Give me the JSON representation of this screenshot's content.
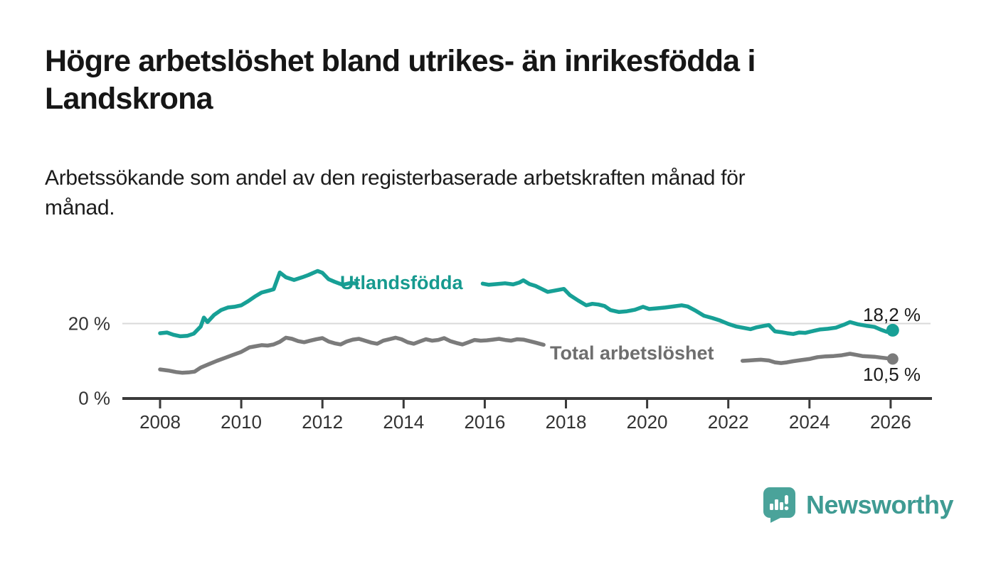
{
  "page": {
    "background": "#ffffff"
  },
  "header": {
    "title_lines": [
      "Högre arbetslöshet bland utrikes- än inrikesfödda i",
      "Landskrona"
    ],
    "subtitle_lines": [
      "Arbetssökande som andel av den registerbaserade arbetskraften månad för",
      "månad."
    ]
  },
  "footer": {
    "brand_name": "Newsworthy",
    "brand_icon": "speech-bubble-bar-chart"
  },
  "colors": {
    "teal_line": "#17a096",
    "teal_label": "#169a8f",
    "gray_line": "#7b7b7b",
    "gray_label": "#6e6e6e",
    "axis": "#3a3a3a",
    "gridline": "#dadada",
    "tick_text": "#333333",
    "value_text": "#1a1a1a",
    "logo": "#4aa39a"
  },
  "chart_data": {
    "type": "line",
    "unit": "%",
    "x_axis": {
      "tick_years": [
        2008,
        2010,
        2012,
        2014,
        2016,
        2018,
        2020,
        2022,
        2024,
        2026
      ],
      "tick_labels": [
        "2008",
        "2010",
        "2012",
        "2014",
        "2016",
        "2018",
        "2020",
        "2022",
        "2024",
        "2026"
      ],
      "range_years": [
        2007.1,
        2027.0
      ]
    },
    "y_axis": {
      "ticks": [
        {
          "value": 0,
          "label": "0 %"
        },
        {
          "value": 20,
          "label": "20 %"
        }
      ],
      "gridline_values": [
        20
      ],
      "range": [
        0,
        40
      ]
    },
    "legend_position": "inline-labels-on-lines",
    "grid": "horizontal-only",
    "series": [
      {
        "name": "Utlandsfödda",
        "color": "#17a096",
        "label_color": "#169a8f",
        "end_value_label": "18,2 %",
        "end_point": [
          2026.05,
          18.2
        ],
        "segments": [
          [
            [
              2008.0,
              17.4
            ],
            [
              2008.17,
              17.6
            ],
            [
              2008.33,
              17.0
            ],
            [
              2008.5,
              16.6
            ],
            [
              2008.67,
              16.7
            ],
            [
              2008.83,
              17.3
            ],
            [
              2009.0,
              19.2
            ],
            [
              2009.08,
              21.6
            ],
            [
              2009.17,
              20.4
            ],
            [
              2009.33,
              22.3
            ],
            [
              2009.5,
              23.6
            ],
            [
              2009.67,
              24.3
            ],
            [
              2009.83,
              24.5
            ],
            [
              2010.0,
              24.9
            ],
            [
              2010.17,
              26.0
            ],
            [
              2010.33,
              27.2
            ],
            [
              2010.5,
              28.3
            ],
            [
              2010.67,
              28.8
            ],
            [
              2010.8,
              29.2
            ],
            [
              2010.87,
              31.3
            ],
            [
              2010.95,
              33.7
            ],
            [
              2011.1,
              32.4
            ],
            [
              2011.3,
              31.7
            ],
            [
              2011.5,
              32.4
            ],
            [
              2011.65,
              33.0
            ],
            [
              2011.88,
              34.1
            ],
            [
              2012.0,
              33.6
            ],
            [
              2012.15,
              31.9
            ],
            [
              2012.3,
              31.2
            ],
            [
              2012.5,
              30.4
            ],
            [
              2012.7,
              30.9
            ],
            [
              2012.85,
              30.7
            ]
          ],
          [
            [
              2015.95,
              30.7
            ],
            [
              2016.1,
              30.4
            ],
            [
              2016.3,
              30.6
            ],
            [
              2016.5,
              30.8
            ],
            [
              2016.7,
              30.5
            ],
            [
              2016.85,
              31.0
            ],
            [
              2016.95,
              31.6
            ],
            [
              2017.1,
              30.6
            ],
            [
              2017.25,
              30.1
            ],
            [
              2017.4,
              29.3
            ],
            [
              2017.55,
              28.5
            ],
            [
              2017.75,
              28.9
            ],
            [
              2017.95,
              29.3
            ],
            [
              2018.1,
              27.6
            ],
            [
              2018.3,
              26.2
            ],
            [
              2018.5,
              24.9
            ],
            [
              2018.65,
              25.3
            ],
            [
              2018.8,
              25.1
            ],
            [
              2018.95,
              24.7
            ],
            [
              2019.1,
              23.6
            ],
            [
              2019.3,
              23.1
            ],
            [
              2019.5,
              23.3
            ],
            [
              2019.7,
              23.7
            ],
            [
              2019.9,
              24.5
            ],
            [
              2020.05,
              23.9
            ],
            [
              2020.25,
              24.1
            ],
            [
              2020.45,
              24.3
            ],
            [
              2020.65,
              24.6
            ],
            [
              2020.85,
              24.9
            ],
            [
              2021.0,
              24.6
            ],
            [
              2021.2,
              23.4
            ],
            [
              2021.4,
              22.1
            ],
            [
              2021.6,
              21.5
            ],
            [
              2021.8,
              20.8
            ],
            [
              2022.0,
              19.9
            ],
            [
              2022.2,
              19.2
            ],
            [
              2022.4,
              18.8
            ],
            [
              2022.55,
              18.5
            ],
            [
              2022.7,
              19.0
            ],
            [
              2022.9,
              19.4
            ],
            [
              2023.0,
              19.6
            ],
            [
              2023.15,
              17.9
            ],
            [
              2023.3,
              17.7
            ],
            [
              2023.45,
              17.4
            ],
            [
              2023.6,
              17.2
            ],
            [
              2023.75,
              17.6
            ],
            [
              2023.9,
              17.5
            ],
            [
              2024.05,
              17.9
            ],
            [
              2024.25,
              18.4
            ],
            [
              2024.45,
              18.6
            ],
            [
              2024.65,
              18.9
            ],
            [
              2024.85,
              19.7
            ],
            [
              2025.0,
              20.4
            ],
            [
              2025.2,
              19.8
            ],
            [
              2025.4,
              19.4
            ],
            [
              2025.6,
              19.1
            ],
            [
              2025.75,
              18.4
            ],
            [
              2025.9,
              17.8
            ],
            [
              2026.05,
              18.2
            ]
          ]
        ]
      },
      {
        "name": "Total arbetslöshet",
        "color": "#7b7b7b",
        "label_color": "#6e6e6e",
        "end_value_label": "10,5 %",
        "end_point": [
          2026.05,
          10.5
        ],
        "segments": [
          [
            [
              2008.0,
              7.7
            ],
            [
              2008.2,
              7.4
            ],
            [
              2008.4,
              7.0
            ],
            [
              2008.55,
              6.8
            ],
            [
              2008.7,
              6.9
            ],
            [
              2008.85,
              7.1
            ],
            [
              2009.0,
              8.2
            ],
            [
              2009.2,
              9.1
            ],
            [
              2009.4,
              10.0
            ],
            [
              2009.6,
              10.8
            ],
            [
              2009.8,
              11.6
            ],
            [
              2010.0,
              12.4
            ],
            [
              2010.2,
              13.6
            ],
            [
              2010.35,
              13.9
            ],
            [
              2010.5,
              14.2
            ],
            [
              2010.65,
              14.1
            ],
            [
              2010.8,
              14.4
            ],
            [
              2010.95,
              15.1
            ],
            [
              2011.1,
              16.2
            ],
            [
              2011.25,
              15.9
            ],
            [
              2011.4,
              15.3
            ],
            [
              2011.55,
              15.0
            ],
            [
              2011.7,
              15.4
            ],
            [
              2011.85,
              15.8
            ],
            [
              2012.0,
              16.1
            ],
            [
              2012.15,
              15.2
            ],
            [
              2012.3,
              14.7
            ],
            [
              2012.45,
              14.4
            ],
            [
              2012.6,
              15.2
            ],
            [
              2012.75,
              15.7
            ],
            [
              2012.9,
              15.9
            ],
            [
              2013.05,
              15.4
            ],
            [
              2013.2,
              14.9
            ],
            [
              2013.35,
              14.6
            ],
            [
              2013.5,
              15.4
            ],
            [
              2013.65,
              15.8
            ],
            [
              2013.8,
              16.2
            ],
            [
              2013.95,
              15.8
            ],
            [
              2014.1,
              15.0
            ],
            [
              2014.25,
              14.6
            ],
            [
              2014.4,
              15.2
            ],
            [
              2014.55,
              15.8
            ],
            [
              2014.7,
              15.4
            ],
            [
              2014.85,
              15.6
            ],
            [
              2015.0,
              16.1
            ],
            [
              2015.15,
              15.3
            ],
            [
              2015.3,
              14.8
            ],
            [
              2015.45,
              14.4
            ],
            [
              2015.6,
              15.0
            ],
            [
              2015.75,
              15.6
            ],
            [
              2015.9,
              15.4
            ],
            [
              2016.05,
              15.5
            ],
            [
              2016.2,
              15.7
            ],
            [
              2016.35,
              15.9
            ],
            [
              2016.5,
              15.6
            ],
            [
              2016.65,
              15.4
            ],
            [
              2016.8,
              15.8
            ],
            [
              2016.95,
              15.7
            ],
            [
              2017.1,
              15.3
            ],
            [
              2017.25,
              14.9
            ],
            [
              2017.45,
              14.3
            ]
          ],
          [
            [
              2022.35,
              10.0
            ],
            [
              2022.5,
              10.1
            ],
            [
              2022.65,
              10.2
            ],
            [
              2022.8,
              10.3
            ],
            [
              2023.0,
              10.1
            ],
            [
              2023.15,
              9.6
            ],
            [
              2023.3,
              9.4
            ],
            [
              2023.45,
              9.6
            ],
            [
              2023.6,
              9.9
            ],
            [
              2023.8,
              10.2
            ],
            [
              2024.0,
              10.5
            ],
            [
              2024.2,
              11.0
            ],
            [
              2024.4,
              11.2
            ],
            [
              2024.6,
              11.3
            ],
            [
              2024.8,
              11.5
            ],
            [
              2025.0,
              11.9
            ],
            [
              2025.15,
              11.6
            ],
            [
              2025.3,
              11.3
            ],
            [
              2025.45,
              11.2
            ],
            [
              2025.6,
              11.1
            ],
            [
              2025.75,
              10.9
            ],
            [
              2025.9,
              10.7
            ],
            [
              2026.05,
              10.5
            ]
          ]
        ]
      }
    ]
  }
}
